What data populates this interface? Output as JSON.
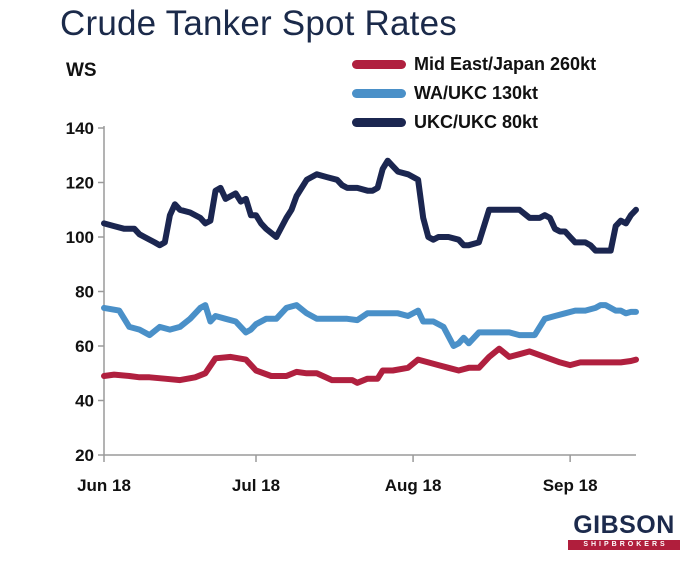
{
  "chart_data": {
    "type": "line",
    "title": "Crude Tanker Spot Rates",
    "ylabel": "WS",
    "ylim": [
      20,
      140
    ],
    "yticks": [
      20,
      40,
      60,
      80,
      100,
      120,
      140
    ],
    "x_ticks": [
      "Jun 18",
      "Jul 18",
      "Aug 18",
      "Sep 18"
    ],
    "x_tick_days": [
      0,
      30,
      61,
      92
    ],
    "xlim_days": [
      0,
      105
    ],
    "grid": false,
    "legend_position": "top-right",
    "series": [
      {
        "name": "Mid East/Japan 260kt",
        "color": "#b0203f",
        "x": [
          0,
          2,
          5,
          7,
          9,
          12,
          15,
          18,
          20,
          22,
          25,
          28,
          30,
          33,
          36,
          38,
          40,
          42,
          45,
          47,
          49,
          50,
          52,
          54,
          55,
          57,
          60,
          62,
          64,
          66,
          68,
          70,
          72,
          74,
          76,
          78,
          80,
          82,
          84,
          87,
          90,
          92,
          94,
          96,
          98,
          100,
          102,
          104,
          105
        ],
        "y": [
          49,
          49.5,
          49,
          48.5,
          48.5,
          48,
          47.5,
          48.5,
          50,
          55.5,
          56,
          55,
          51,
          49,
          49,
          50.5,
          50,
          50,
          47.5,
          47.5,
          47.5,
          46.5,
          48,
          48,
          51,
          51,
          52,
          55,
          54,
          53,
          52,
          51,
          52,
          52,
          56,
          59,
          56,
          57,
          58,
          56,
          54,
          53,
          54,
          54,
          54,
          54,
          54,
          54.5,
          55
        ]
      },
      {
        "name": "WA/UKC 130kt",
        "color": "#4a90c8",
        "x": [
          0,
          3,
          5,
          7,
          9,
          11,
          13,
          15,
          17,
          19,
          20,
          21,
          22,
          24,
          26,
          28,
          29,
          30,
          32,
          34,
          36,
          38,
          40,
          42,
          44,
          46,
          48,
          50,
          52,
          55,
          58,
          60,
          62,
          63,
          65,
          67,
          69,
          70,
          71,
          72,
          74,
          77,
          80,
          82,
          84,
          85,
          87,
          89,
          91,
          93,
          95,
          97,
          98,
          99,
          100,
          101,
          102,
          103,
          104,
          105
        ],
        "y": [
          74,
          73,
          67,
          66,
          64,
          67,
          66,
          67,
          70,
          74,
          75,
          69,
          71,
          70,
          69,
          65,
          66,
          68,
          70,
          70,
          74,
          75,
          72,
          70,
          70,
          70,
          70,
          69.5,
          72,
          72,
          72,
          71,
          73,
          69,
          69,
          67,
          60,
          61,
          63,
          61,
          65,
          65,
          65,
          64,
          64,
          64,
          70,
          71,
          72,
          73,
          73,
          74,
          75,
          75,
          74,
          73,
          73,
          72,
          72.5,
          72.5
        ]
      },
      {
        "name": "UKC/UKC 80kt",
        "color": "#1b2650",
        "x": [
          0,
          2,
          4,
          6,
          7,
          8,
          10,
          11,
          12,
          13,
          14,
          15,
          17,
          19,
          20,
          21,
          22,
          23,
          24,
          26,
          27,
          28,
          29,
          30,
          31,
          32,
          34,
          36,
          37,
          38,
          40,
          42,
          44,
          46,
          47,
          48,
          50,
          52,
          53,
          54,
          55,
          56,
          57,
          58,
          60,
          62,
          63,
          64,
          65,
          66,
          67,
          68,
          70,
          71,
          72,
          74,
          76,
          78,
          80,
          82,
          84,
          86,
          87,
          88,
          89,
          90,
          91,
          92,
          93,
          94,
          95,
          96,
          97,
          98,
          100,
          101,
          102,
          103,
          104,
          105
        ],
        "y": [
          105,
          104,
          103,
          103,
          101,
          100,
          98,
          97,
          98,
          108,
          112,
          110,
          109,
          107,
          105,
          106,
          117,
          118,
          114,
          116,
          113,
          114,
          108,
          108,
          105,
          103,
          100,
          107,
          110,
          115,
          121,
          123,
          122,
          121,
          119,
          118,
          118,
          117,
          117,
          118,
          125,
          128,
          126,
          124,
          123,
          121,
          107,
          100,
          99,
          100,
          100,
          100,
          99,
          97,
          97,
          98,
          110,
          110,
          110,
          110,
          107,
          107,
          108,
          107,
          103,
          102,
          102,
          100,
          98,
          98,
          98,
          97,
          95,
          95,
          95,
          104,
          106,
          105,
          108,
          110
        ]
      }
    ]
  },
  "logo": {
    "main": "GIBSON",
    "sub": "SHIPBROKERS"
  }
}
